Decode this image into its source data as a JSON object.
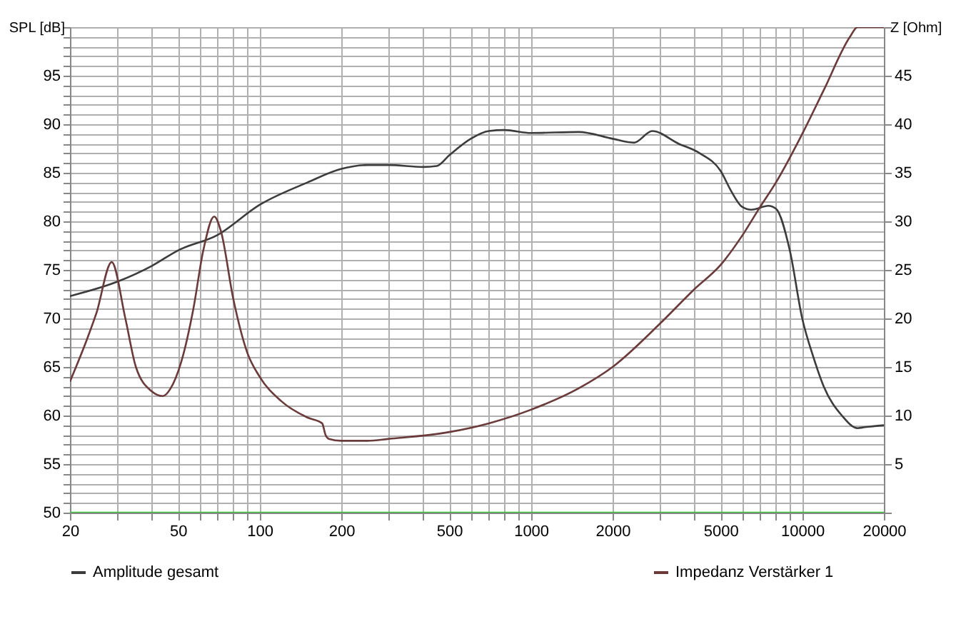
{
  "chart_data": {
    "type": "line",
    "ylabel": "SPL [dB]",
    "y2label": "Z [Ohm]",
    "xlim": [
      20,
      20000
    ],
    "ylim": [
      50,
      100
    ],
    "y2lim": [
      0,
      50
    ],
    "xticks": [
      20,
      {
        "value": 30,
        "label": null
      },
      {
        "value": 40,
        "label": null
      },
      50,
      {
        "value": 60,
        "label": null
      },
      {
        "value": 70,
        "label": null
      },
      {
        "value": 80,
        "label": null
      },
      {
        "value": 90,
        "label": null
      },
      100,
      200,
      {
        "value": 300,
        "label": null
      },
      {
        "value": 400,
        "label": null
      },
      500,
      {
        "value": 600,
        "label": null
      },
      {
        "value": 700,
        "label": null
      },
      {
        "value": 800,
        "label": null
      },
      {
        "value": 900,
        "label": null
      },
      1000,
      2000,
      {
        "value": 3000,
        "label": null
      },
      {
        "value": 4000,
        "label": null
      },
      5000,
      {
        "value": 6000,
        "label": null
      },
      {
        "value": 7000,
        "label": null
      },
      {
        "value": 8000,
        "label": null
      },
      {
        "value": 9000,
        "label": null
      },
      10000,
      20000
    ],
    "yticks": [
      50,
      {
        "value": 51,
        "label": null
      },
      {
        "value": 52,
        "label": null
      },
      {
        "value": 53,
        "label": null
      },
      {
        "value": 54,
        "label": null
      },
      55,
      {
        "value": 56,
        "label": null
      },
      {
        "value": 57,
        "label": null
      },
      {
        "value": 58,
        "label": null
      },
      {
        "value": 59,
        "label": null
      },
      60,
      {
        "value": 61,
        "label": null
      },
      {
        "value": 62,
        "label": null
      },
      {
        "value": 63,
        "label": null
      },
      {
        "value": 64,
        "label": null
      },
      65,
      {
        "value": 66,
        "label": null
      },
      {
        "value": 67,
        "label": null
      },
      {
        "value": 68,
        "label": null
      },
      {
        "value": 69,
        "label": null
      },
      70,
      {
        "value": 71,
        "label": null
      },
      {
        "value": 72,
        "label": null
      },
      {
        "value": 73,
        "label": null
      },
      {
        "value": 74,
        "label": null
      },
      75,
      {
        "value": 76,
        "label": null
      },
      {
        "value": 77,
        "label": null
      },
      {
        "value": 78,
        "label": null
      },
      {
        "value": 79,
        "label": null
      },
      80,
      {
        "value": 81,
        "label": null
      },
      {
        "value": 82,
        "label": null
      },
      {
        "value": 83,
        "label": null
      },
      {
        "value": 84,
        "label": null
      },
      85,
      {
        "value": 86,
        "label": null
      },
      {
        "value": 87,
        "label": null
      },
      {
        "value": 88,
        "label": null
      },
      {
        "value": 89,
        "label": null
      },
      90,
      {
        "value": 91,
        "label": null
      },
      {
        "value": 92,
        "label": null
      },
      {
        "value": 93,
        "label": null
      },
      {
        "value": 94,
        "label": null
      },
      95,
      {
        "value": 96,
        "label": null
      },
      {
        "value": 97,
        "label": null
      },
      {
        "value": 98,
        "label": null
      },
      {
        "value": 99,
        "label": null
      },
      {
        "value": 100,
        "label": null
      }
    ],
    "y2ticks": [
      {
        "value": 0,
        "label": null
      },
      5,
      10,
      15,
      20,
      25,
      30,
      35,
      40,
      45,
      {
        "value": 50,
        "label": null
      }
    ],
    "grid": true,
    "log": "x",
    "legend": "bottom",
    "line_style": "solid",
    "marker": "none",
    "series": [
      {
        "name": "Amplitude gesamt",
        "color": "#3c3c3c",
        "x": [
          20,
          30,
          40,
          50,
          70,
          100,
          150,
          200,
          250,
          300,
          400,
          450,
          500,
          600,
          700,
          800,
          1000,
          1500,
          2000,
          2400,
          2800,
          3500,
          4200,
          5000,
          5500,
          6000,
          6500,
          7500,
          8000,
          9000,
          10000,
          11000,
          12000,
          14000,
          16000,
          17000,
          20000
        ],
        "values": [
          72.3,
          73.8,
          75.4,
          77,
          78.6,
          81.7,
          84,
          85.4,
          85.8,
          85.8,
          85.6,
          85.7,
          86.8,
          88.5,
          89.3,
          89.4,
          89.1,
          89.2,
          88.5,
          88.1,
          89.3,
          88,
          87,
          85.2,
          83,
          81.5,
          81.2,
          81.6,
          81.3,
          77,
          70,
          66,
          63,
          60,
          58.7,
          58.8,
          59
        ]
      },
      {
        "color": "#33cc33",
        "x": [
          20,
          20000
        ],
        "values": [
          50,
          50
        ]
      },
      {
        "name": "Impedanz Verstärker 1",
        "color": "#6b3a3a",
        "axis": "y2",
        "x": [
          20,
          23,
          25,
          28.5,
          32,
          35,
          40,
          44,
          47,
          52,
          57,
          62,
          68,
          72,
          80,
          90,
          100,
          120,
          150,
          170,
          175,
          180,
          200,
          250,
          300,
          500,
          700,
          1000,
          1500,
          2000,
          3000,
          4000,
          5000,
          6000,
          7000,
          8000,
          10000,
          12000,
          15000,
          16000,
          20000
        ],
        "values": [
          13.5,
          17.7,
          20.5,
          25.8,
          20,
          15,
          12.5,
          12,
          12.8,
          16,
          21,
          27,
          30.5,
          29,
          22,
          16.5,
          14,
          11.5,
          9.8,
          9.2,
          8,
          7.6,
          7.4,
          7.4,
          7.6,
          8.3,
          9.2,
          10.6,
          12.8,
          15,
          19.5,
          23,
          25.5,
          28.5,
          31.5,
          34,
          39,
          43.5,
          49,
          50,
          50
        ]
      }
    ]
  }
}
